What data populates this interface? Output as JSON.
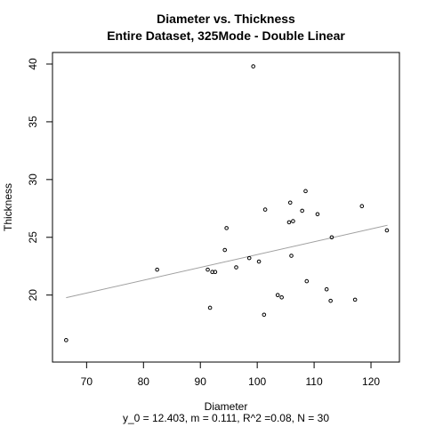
{
  "chart_data": {
    "type": "scatter",
    "title": "Diameter vs. Thickness",
    "subtitle": "Entire Dataset, 325Mode - Double Linear",
    "xlabel": "Diameter",
    "ylabel": "Thickness",
    "footer": "y_0 = 12.403, m = 0.111, R^2 =0.08, N = 30",
    "xlim": [
      64.0,
      125.0
    ],
    "ylim": [
      14.2,
      41.0
    ],
    "xticks": [
      70,
      80,
      90,
      100,
      110,
      120
    ],
    "yticks": [
      20,
      25,
      30,
      35,
      40
    ],
    "grid": false,
    "fit_line": {
      "x": [
        66.4,
        122.9
      ],
      "intercept": 12.403,
      "slope": 0.111
    },
    "points": [
      {
        "x": 66.4,
        "y": 16.1
      },
      {
        "x": 82.4,
        "y": 22.2
      },
      {
        "x": 91.3,
        "y": 22.2
      },
      {
        "x": 91.7,
        "y": 18.9
      },
      {
        "x": 92.1,
        "y": 22.0
      },
      {
        "x": 92.6,
        "y": 22.0
      },
      {
        "x": 94.3,
        "y": 23.9
      },
      {
        "x": 94.6,
        "y": 25.8
      },
      {
        "x": 96.3,
        "y": 22.4
      },
      {
        "x": 98.6,
        "y": 23.2
      },
      {
        "x": 99.3,
        "y": 39.8
      },
      {
        "x": 100.3,
        "y": 22.9
      },
      {
        "x": 101.2,
        "y": 18.3
      },
      {
        "x": 101.4,
        "y": 27.4
      },
      {
        "x": 103.6,
        "y": 20.0
      },
      {
        "x": 104.3,
        "y": 19.8
      },
      {
        "x": 105.6,
        "y": 26.3
      },
      {
        "x": 105.8,
        "y": 28.0
      },
      {
        "x": 106.0,
        "y": 23.4
      },
      {
        "x": 106.3,
        "y": 26.4
      },
      {
        "x": 107.9,
        "y": 27.3
      },
      {
        "x": 108.5,
        "y": 29.0
      },
      {
        "x": 108.7,
        "y": 21.2
      },
      {
        "x": 110.6,
        "y": 27.0
      },
      {
        "x": 112.2,
        "y": 20.5
      },
      {
        "x": 112.9,
        "y": 19.5
      },
      {
        "x": 113.1,
        "y": 25.0
      },
      {
        "x": 117.2,
        "y": 19.6
      },
      {
        "x": 118.4,
        "y": 27.7
      },
      {
        "x": 122.8,
        "y": 25.6
      }
    ]
  }
}
